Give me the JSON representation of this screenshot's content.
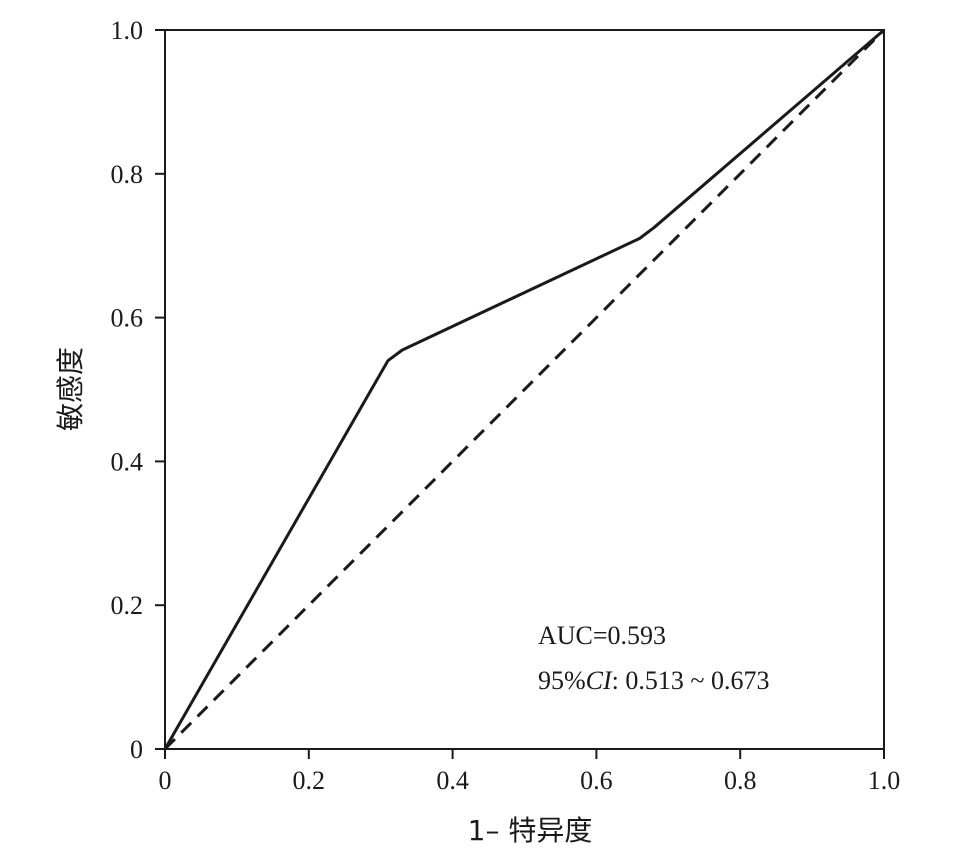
{
  "chart_data": {
    "type": "line",
    "xlabel": "1– 特异度",
    "ylabel": "敏感度",
    "xlim": [
      0,
      1
    ],
    "ylim": [
      0,
      1
    ],
    "grid": false,
    "x_ticks": [
      {
        "value": 0,
        "label": "0"
      },
      {
        "value": 0.2,
        "label": "0.2"
      },
      {
        "value": 0.4,
        "label": "0.4"
      },
      {
        "value": 0.6,
        "label": "0.6"
      },
      {
        "value": 0.8,
        "label": "0.8"
      },
      {
        "value": 1.0,
        "label": "1.0"
      }
    ],
    "y_ticks": [
      {
        "value": 0,
        "label": "0"
      },
      {
        "value": 0.2,
        "label": "0.2"
      },
      {
        "value": 0.4,
        "label": "0.4"
      },
      {
        "value": 0.6,
        "label": "0.6"
      },
      {
        "value": 0.8,
        "label": "0.8"
      },
      {
        "value": 1.0,
        "label": "1.0"
      }
    ],
    "series": [
      {
        "style": "solid",
        "points": [
          [
            0,
            0
          ],
          [
            0.31,
            0.54
          ],
          [
            0.33,
            0.555
          ],
          [
            0.66,
            0.71
          ],
          [
            0.68,
            0.725
          ],
          [
            1.0,
            1.0
          ]
        ]
      },
      {
        "style": "dashed",
        "points": [
          [
            0,
            0
          ],
          [
            1.0,
            1.0
          ]
        ]
      }
    ],
    "annotations": {
      "auc": "AUC=0.593",
      "ci_prefix": "95%",
      "ci_italic": "CI",
      "ci_values": ": 0.513 ~ 0.673"
    }
  }
}
